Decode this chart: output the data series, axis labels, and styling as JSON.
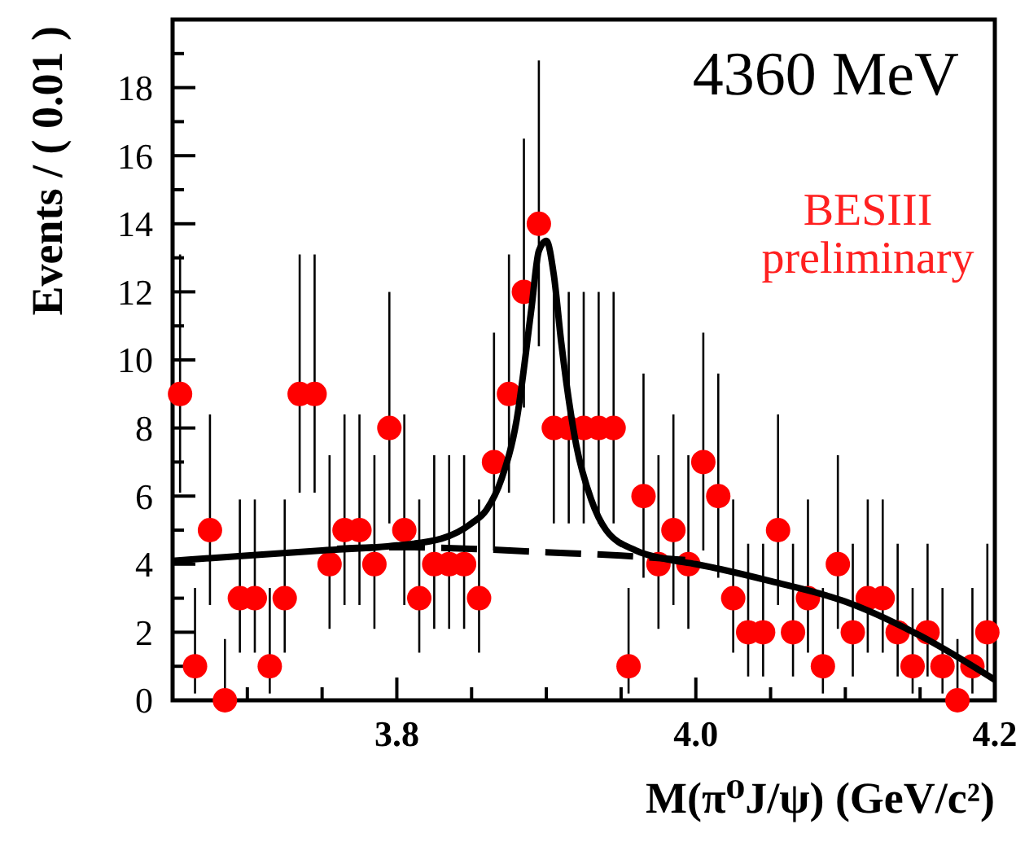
{
  "chart_data": {
    "type": "scatter",
    "xlabel": "M(π⁰J/ψ) (GeV/c²)",
    "ylabel": "Events / ( 0.01 )",
    "annotations": [
      "4360 MeV",
      "BESIII preliminary"
    ],
    "xlim": [
      3.65,
      4.2
    ],
    "ylim": [
      0,
      20
    ],
    "xticks": [
      {
        "value": 3.7,
        "label": null
      },
      {
        "value": 3.75,
        "label": null
      },
      {
        "value": 3.8,
        "label": "3.8"
      },
      {
        "value": 3.85,
        "label": null
      },
      {
        "value": 3.9,
        "label": null
      },
      {
        "value": 3.95,
        "label": null
      },
      {
        "value": 4.0,
        "label": "4.0"
      },
      {
        "value": 4.05,
        "label": null
      },
      {
        "value": 4.1,
        "label": null
      },
      {
        "value": 4.15,
        "label": null
      },
      {
        "value": 4.2,
        "label": "4.2"
      }
    ],
    "yticks": [
      0,
      {
        "value": 1,
        "label": null
      },
      2,
      {
        "value": 3,
        "label": null
      },
      4,
      {
        "value": 5,
        "label": null
      },
      6,
      {
        "value": 7,
        "label": null
      },
      8,
      {
        "value": 9,
        "label": null
      },
      10,
      {
        "value": 11,
        "label": null
      },
      12,
      {
        "value": 13,
        "label": null
      },
      14,
      {
        "value": 15,
        "label": null
      },
      16,
      {
        "value": 17,
        "label": null
      },
      18,
      {
        "value": 19,
        "label": null
      }
    ],
    "grid": false,
    "marker": "circle",
    "series": [
      {
        "color": "#ff0000",
        "x": [
          3.655,
          3.665,
          3.675,
          3.685,
          3.695,
          3.705,
          3.715,
          3.725,
          3.735,
          3.745,
          3.755,
          3.765,
          3.775,
          3.785,
          3.795,
          3.805,
          3.815,
          3.825,
          3.835,
          3.845,
          3.855,
          3.865,
          3.875,
          3.885,
          3.895,
          3.905,
          3.915,
          3.925,
          3.935,
          3.945,
          3.955,
          3.965,
          3.975,
          3.985,
          3.995,
          4.005,
          4.015,
          4.025,
          4.035,
          4.045,
          4.055,
          4.065,
          4.075,
          4.085,
          4.095,
          4.105,
          4.115,
          4.125,
          4.135,
          4.145,
          4.155,
          4.165,
          4.175,
          4.185,
          4.195
        ],
        "values": [
          9,
          1,
          5,
          0,
          3,
          3,
          1,
          3,
          9,
          9,
          4,
          5,
          5,
          4,
          8,
          5,
          3,
          4,
          4,
          4,
          3,
          7,
          9,
          12,
          14,
          8,
          8,
          8,
          8,
          8,
          1,
          6,
          4,
          5,
          4,
          7,
          6,
          3,
          2,
          2,
          5,
          2,
          3,
          1,
          4,
          2,
          3,
          3,
          2,
          1,
          2,
          1,
          0,
          1,
          2
        ],
        "errors": [
          [
            6.1,
            13.1
          ],
          [
            0.2,
            3.3
          ],
          [
            2.8,
            8.4
          ],
          [
            0,
            1.8
          ],
          [
            1.4,
            5.9
          ],
          [
            1.4,
            5.9
          ],
          [
            0.2,
            3.3
          ],
          [
            1.4,
            5.9
          ],
          [
            6.1,
            13.1
          ],
          [
            6.1,
            13.1
          ],
          [
            2.1,
            7.2
          ],
          [
            2.8,
            8.4
          ],
          [
            2.8,
            8.4
          ],
          [
            2.1,
            7.2
          ],
          [
            5.2,
            12.0
          ],
          [
            2.8,
            8.4
          ],
          [
            1.4,
            5.9
          ],
          [
            2.1,
            7.2
          ],
          [
            2.1,
            7.2
          ],
          [
            2.1,
            7.2
          ],
          [
            1.4,
            5.9
          ],
          [
            4.4,
            10.8
          ],
          [
            6.1,
            13.1
          ],
          [
            8.6,
            16.5
          ],
          [
            10.4,
            18.8
          ],
          [
            5.2,
            12.0
          ],
          [
            5.2,
            12.0
          ],
          [
            5.2,
            12.0
          ],
          [
            5.2,
            12.0
          ],
          [
            5.2,
            12.0
          ],
          [
            0.2,
            3.3
          ],
          [
            3.6,
            9.6
          ],
          [
            2.1,
            7.2
          ],
          [
            2.8,
            8.4
          ],
          [
            2.1,
            7.2
          ],
          [
            4.4,
            10.8
          ],
          [
            3.6,
            9.6
          ],
          [
            1.4,
            5.9
          ],
          [
            0.7,
            4.6
          ],
          [
            0.7,
            4.6
          ],
          [
            2.8,
            8.4
          ],
          [
            0.7,
            4.6
          ],
          [
            1.4,
            5.9
          ],
          [
            0.2,
            3.3
          ],
          [
            2.1,
            7.2
          ],
          [
            0.7,
            4.6
          ],
          [
            1.4,
            5.9
          ],
          [
            1.4,
            5.9
          ],
          [
            0.7,
            4.6
          ],
          [
            0.2,
            3.3
          ],
          [
            0.7,
            4.6
          ],
          [
            0.2,
            3.3
          ],
          [
            0,
            1.8
          ],
          [
            0.2,
            3.3
          ],
          [
            0.7,
            4.6
          ]
        ]
      },
      {
        "type": "line",
        "color": "#000000",
        "line_style": "dashed",
        "marker": "none",
        "x": [
          3.76,
          3.8,
          3.85,
          3.9,
          3.95,
          4.0
        ],
        "values": [
          4.45,
          4.5,
          4.45,
          4.35,
          4.25,
          4.1
        ]
      },
      {
        "type": "line",
        "color": "#000000",
        "line_style": "solid",
        "marker": "none",
        "x": [
          3.65,
          3.7,
          3.75,
          3.8,
          3.83,
          3.85,
          3.86,
          3.87,
          3.88,
          3.89,
          3.895,
          3.9,
          3.905,
          3.91,
          3.92,
          3.93,
          3.94,
          3.96,
          3.98,
          4.0,
          4.05,
          4.1,
          4.15,
          4.2
        ],
        "values": [
          4.1,
          4.25,
          4.4,
          4.55,
          4.75,
          5.2,
          5.6,
          6.5,
          8.2,
          11.5,
          13.2,
          13.5,
          12.5,
          10.5,
          7.5,
          5.9,
          5.0,
          4.4,
          4.15,
          4.0,
          3.5,
          2.9,
          1.9,
          0.6
        ]
      }
    ]
  }
}
